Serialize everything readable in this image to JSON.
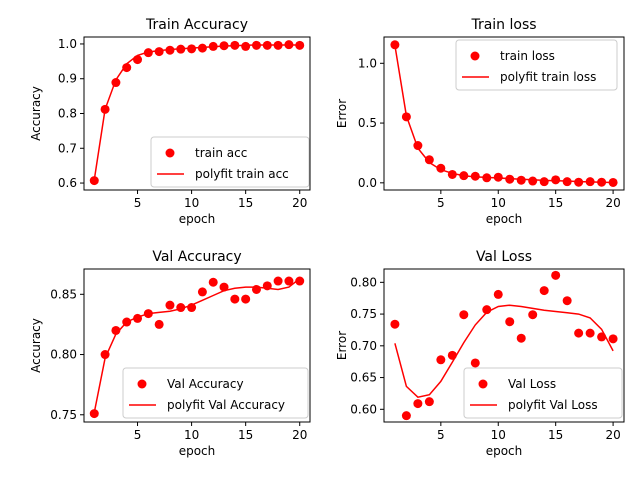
{
  "colors": {
    "series": "#ff0000",
    "axis": "#000000",
    "legend_border": "#cccccc"
  },
  "chart_data": [
    {
      "type": "scatter",
      "title": "Train Accuracy",
      "xlabel": "epoch",
      "ylabel": "Accuracy",
      "xlim": [
        0.05,
        20.95
      ],
      "ylim": [
        0.58,
        1.02
      ],
      "xticks": [
        5,
        10,
        15,
        20
      ],
      "yticks": [
        0.6,
        0.7,
        0.8,
        0.9,
        1.0
      ],
      "ytick_labels": [
        "0.6",
        "0.7",
        "0.8",
        "0.9",
        "1.0"
      ],
      "legend_position": "lower right",
      "legend_labels": [
        "train acc",
        "polyfit train acc"
      ],
      "x": [
        1,
        2,
        3,
        4,
        5,
        6,
        7,
        8,
        9,
        10,
        11,
        12,
        13,
        14,
        15,
        16,
        17,
        18,
        19,
        20
      ],
      "points": [
        0.607,
        0.812,
        0.889,
        0.932,
        0.955,
        0.975,
        0.978,
        0.982,
        0.985,
        0.986,
        0.988,
        0.993,
        0.995,
        0.996,
        0.993,
        0.996,
        0.996,
        0.996,
        0.998,
        0.996
      ],
      "fit": [
        0.61,
        0.812,
        0.897,
        0.943,
        0.967,
        0.977,
        0.981,
        0.984,
        0.986,
        0.988,
        0.99,
        0.992,
        0.994,
        0.995,
        0.996,
        0.997,
        0.997,
        0.997,
        0.997,
        0.997
      ]
    },
    {
      "type": "scatter",
      "title": "Train loss",
      "xlabel": "epoch",
      "ylabel": "Error",
      "xlim": [
        0.05,
        20.95
      ],
      "ylim": [
        -0.06,
        1.22
      ],
      "xticks": [
        5,
        10,
        15,
        20
      ],
      "yticks": [
        0.0,
        0.5,
        1.0
      ],
      "ytick_labels": [
        "0.0",
        "0.5",
        "1.0"
      ],
      "legend_position": "upper right",
      "legend_labels": [
        "train loss",
        "polyfit train loss"
      ],
      "x": [
        1,
        2,
        3,
        4,
        5,
        6,
        7,
        8,
        9,
        10,
        11,
        12,
        13,
        14,
        15,
        16,
        17,
        18,
        19,
        20
      ],
      "points": [
        1.155,
        0.552,
        0.312,
        0.193,
        0.122,
        0.07,
        0.06,
        0.055,
        0.042,
        0.047,
        0.03,
        0.022,
        0.015,
        0.01,
        0.025,
        0.01,
        0.005,
        0.01,
        0.005,
        0.003
      ],
      "fit": [
        1.15,
        0.56,
        0.29,
        0.17,
        0.11,
        0.08,
        0.06,
        0.05,
        0.045,
        0.04,
        0.035,
        0.03,
        0.025,
        0.02,
        0.018,
        0.015,
        0.01,
        0.008,
        0.005,
        0.003
      ]
    },
    {
      "type": "scatter",
      "title": "Val Accuracy",
      "xlabel": "epoch",
      "ylabel": "Accuracy",
      "xlim": [
        0.05,
        20.95
      ],
      "ylim": [
        0.744,
        0.871
      ],
      "xticks": [
        5,
        10,
        15,
        20
      ],
      "yticks": [
        0.75,
        0.8,
        0.85
      ],
      "ytick_labels": [
        "0.75",
        "0.80",
        "0.85"
      ],
      "legend_position": "lower right",
      "legend_labels": [
        "Val Accuracy",
        "polyfit Val Accuracy"
      ],
      "x": [
        1,
        2,
        3,
        4,
        5,
        6,
        7,
        8,
        9,
        10,
        11,
        12,
        13,
        14,
        15,
        16,
        17,
        18,
        19,
        20
      ],
      "points": [
        0.751,
        0.8,
        0.82,
        0.827,
        0.83,
        0.834,
        0.825,
        0.841,
        0.839,
        0.839,
        0.852,
        0.86,
        0.856,
        0.846,
        0.846,
        0.854,
        0.857,
        0.861,
        0.861,
        0.861
      ],
      "fit": [
        0.752,
        0.797,
        0.817,
        0.827,
        0.831,
        0.834,
        0.835,
        0.836,
        0.838,
        0.841,
        0.845,
        0.849,
        0.853,
        0.855,
        0.856,
        0.856,
        0.855,
        0.854,
        0.856,
        0.863
      ]
    },
    {
      "type": "scatter",
      "title": "Val Loss",
      "xlabel": "epoch",
      "ylabel": "Error",
      "xlim": [
        0.05,
        20.95
      ],
      "ylim": [
        0.58,
        0.821
      ],
      "xticks": [
        5,
        10,
        15,
        20
      ],
      "yticks": [
        0.6,
        0.65,
        0.7,
        0.75,
        0.8
      ],
      "ytick_labels": [
        "0.60",
        "0.65",
        "0.70",
        "0.75",
        "0.80"
      ],
      "legend_position": "lower right",
      "legend_labels": [
        "Val Loss",
        "polyfit Val Loss"
      ],
      "x": [
        1,
        2,
        3,
        4,
        5,
        6,
        7,
        8,
        9,
        10,
        11,
        12,
        13,
        14,
        15,
        16,
        17,
        18,
        19,
        20
      ],
      "points": [
        0.734,
        0.59,
        0.609,
        0.612,
        0.678,
        0.685,
        0.749,
        0.673,
        0.757,
        0.781,
        0.738,
        0.712,
        0.749,
        0.787,
        0.811,
        0.771,
        0.72,
        0.72,
        0.714,
        0.711
      ],
      "fit": [
        0.704,
        0.636,
        0.619,
        0.623,
        0.644,
        0.674,
        0.705,
        0.733,
        0.753,
        0.762,
        0.764,
        0.762,
        0.759,
        0.756,
        0.754,
        0.752,
        0.75,
        0.744,
        0.726,
        0.692
      ]
    }
  ]
}
